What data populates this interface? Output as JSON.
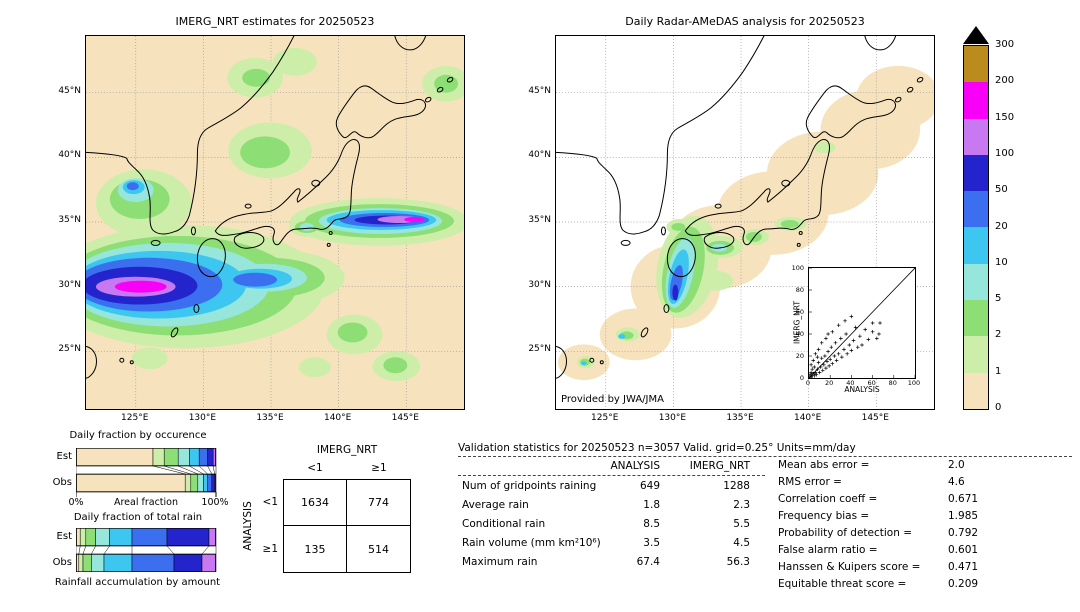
{
  "colorbar": {
    "labels": [
      "300",
      "200",
      "150",
      "100",
      "50",
      "20",
      "10",
      "5",
      "2",
      "1",
      "0"
    ],
    "colors_top_to_bottom": [
      "#bc8b1d",
      "#f800f8",
      "#c878f0",
      "#2424cc",
      "#3b6ff0",
      "#3cc6f0",
      "#97e6dc",
      "#8ede76",
      "#cdeea8",
      "#f6e3bd"
    ],
    "overflow_color": "#000000"
  },
  "fraction_colors": [
    "#f6e3bd",
    "#cdeea8",
    "#8ede76",
    "#97e6dc",
    "#3cc6f0",
    "#3b6ff0",
    "#2424cc",
    "#c878f0"
  ],
  "stats": {
    "title": "Validation statistics for 20250523  n=3057 Valid. grid=0.25° Units=mm/day",
    "col_headers": [
      "ANALYSIS",
      "IMERG_NRT"
    ],
    "rows": [
      {
        "label": "Num of gridpoints raining",
        "analysis": "649",
        "imerg": "1288"
      },
      {
        "label": "Average rain",
        "analysis": "1.8",
        "imerg": "2.3"
      },
      {
        "label": "Conditional rain",
        "analysis": "8.5",
        "imerg": "5.5"
      },
      {
        "label": "Rain volume (mm km²10⁶)",
        "analysis": "3.5",
        "imerg": "4.5"
      },
      {
        "label": "Maximum rain",
        "analysis": "67.4",
        "imerg": "56.3"
      }
    ],
    "right": [
      {
        "label": "Mean abs error =",
        "value": "2.0"
      },
      {
        "label": "RMS error =",
        "value": "4.6"
      },
      {
        "label": "Correlation coeff =",
        "value": "0.671"
      },
      {
        "label": "Frequency bias =",
        "value": "1.985"
      },
      {
        "label": "Probability of detection =",
        "value": "0.792"
      },
      {
        "label": "False alarm ratio =",
        "value": "0.601"
      },
      {
        "label": "Hanssen & Kuipers score =",
        "value": "0.471"
      },
      {
        "label": "Equitable threat score =",
        "value": "0.209"
      }
    ]
  },
  "chart_data": [
    {
      "type": "heatmap",
      "title": "IMERG_NRT estimates for 20250523",
      "x_ticks": [
        "125°E",
        "130°E",
        "135°E",
        "140°E",
        "145°E"
      ],
      "y_ticks": [
        "45°N",
        "40°N",
        "35°N",
        "30°N",
        "25°N"
      ],
      "units": "mm/day",
      "levels": [
        0,
        1,
        2,
        5,
        10,
        20,
        50,
        100,
        150,
        200,
        300
      ],
      "note": "Satellite precipitation field over the Japan region; heavy band (blue/magenta core) near 30°N west of Kyushu and a second band near 35°N east of 138°E"
    },
    {
      "type": "heatmap",
      "title": "Daily Radar-AMeDAS analysis for 20250523",
      "credit": "Provided by JWA/JMA",
      "x_ticks": [
        "125°E",
        "130°E",
        "135°E",
        "140°E",
        "145°E"
      ],
      "y_ticks": [
        "45°N",
        "40°N",
        "35°N",
        "30°N",
        "25°N"
      ],
      "units": "mm/day",
      "levels": [
        0,
        1,
        2,
        5,
        10,
        20,
        50,
        100,
        150,
        200,
        300
      ],
      "note": "Radar analysis only within coverage swath along the archipelago; rain band over Kyushu"
    },
    {
      "type": "scatter",
      "xlabel": "ANALYSIS",
      "ylabel": "IMERG_NRT",
      "xlim": [
        0,
        100
      ],
      "ylim": [
        0,
        100
      ],
      "ticks": [
        0,
        20,
        40,
        60,
        80,
        100
      ],
      "one_to_one_line": true,
      "points": [
        [
          2,
          1
        ],
        [
          1,
          3
        ],
        [
          3,
          2
        ],
        [
          2,
          5
        ],
        [
          4,
          4
        ],
        [
          5,
          2
        ],
        [
          3,
          8
        ],
        [
          6,
          5
        ],
        [
          5,
          10
        ],
        [
          7,
          3
        ],
        [
          8,
          8
        ],
        [
          9,
          14
        ],
        [
          10,
          5
        ],
        [
          11,
          10
        ],
        [
          12,
          18
        ],
        [
          13,
          7
        ],
        [
          14,
          12
        ],
        [
          15,
          20
        ],
        [
          16,
          9
        ],
        [
          17,
          15
        ],
        [
          18,
          24
        ],
        [
          19,
          11
        ],
        [
          20,
          17
        ],
        [
          21,
          28
        ],
        [
          22,
          13
        ],
        [
          24,
          20
        ],
        [
          25,
          32
        ],
        [
          26,
          16
        ],
        [
          28,
          22
        ],
        [
          30,
          36
        ],
        [
          31,
          19
        ],
        [
          33,
          26
        ],
        [
          35,
          40
        ],
        [
          36,
          22
        ],
        [
          38,
          30
        ],
        [
          40,
          25
        ],
        [
          42,
          34
        ],
        [
          44,
          46
        ],
        [
          46,
          28
        ],
        [
          48,
          38
        ],
        [
          50,
          30
        ],
        [
          53,
          44
        ],
        [
          56,
          35
        ],
        [
          60,
          42
        ],
        [
          64,
          36
        ],
        [
          67,
          50
        ],
        [
          66,
          40
        ],
        [
          60,
          50
        ],
        [
          6,
          22
        ],
        [
          4,
          16
        ],
        [
          9,
          26
        ],
        [
          12,
          32
        ],
        [
          2,
          12
        ],
        [
          16,
          36
        ],
        [
          22,
          42
        ],
        [
          28,
          48
        ],
        [
          8,
          19
        ],
        [
          18,
          40
        ],
        [
          34,
          52
        ],
        [
          40,
          56
        ]
      ]
    },
    {
      "type": "bar",
      "title": "Daily fraction by occurence",
      "orientation": "horizontal-stacked",
      "categories": [
        "Est",
        "Obs"
      ],
      "bins_mm_per_day": [
        "0-1",
        "1-2",
        "2-5",
        "5-10",
        "10-20",
        "20-50",
        "50-100",
        "100-150"
      ],
      "est": [
        55,
        8,
        10,
        8,
        7,
        6,
        4,
        2
      ],
      "obs": [
        78,
        4,
        5,
        4,
        3,
        3,
        2,
        1
      ],
      "xlabel": "Areal fraction",
      "x_tick_labels": [
        "0%",
        "100%"
      ]
    },
    {
      "type": "bar",
      "title": "Daily fraction of total rain",
      "orientation": "horizontal-stacked",
      "categories": [
        "Est",
        "Obs"
      ],
      "bins_mm_per_day": [
        "0-1",
        "1-2",
        "2-5",
        "5-10",
        "10-20",
        "20-50",
        "50-100",
        "100-150"
      ],
      "est": [
        3,
        4,
        7,
        10,
        16,
        25,
        30,
        5
      ],
      "obs": [
        2,
        3,
        6,
        9,
        20,
        30,
        20,
        10
      ],
      "caption": "Rainfall accumulation by amount"
    },
    {
      "type": "table",
      "col_group": "IMERG_NRT",
      "row_group": "ANALYSIS",
      "cols": [
        "<1",
        "≥1"
      ],
      "rows": [
        "<1",
        "≥1"
      ],
      "values": [
        [
          1634,
          774
        ],
        [
          135,
          514
        ]
      ]
    }
  ]
}
